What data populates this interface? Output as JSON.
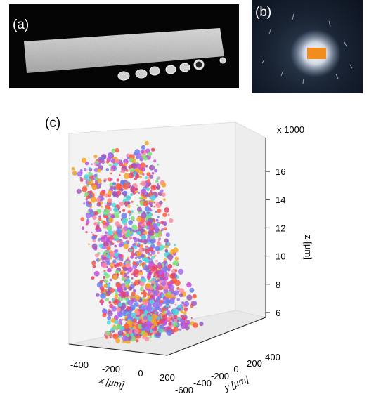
{
  "panels": {
    "a": {
      "label": "(a)"
    },
    "b": {
      "label": "(b)"
    },
    "c": {
      "label": "(c)"
    }
  },
  "chart_data": {
    "type": "scatter",
    "projection": "3d",
    "title": "",
    "xlabel": "x [µm]",
    "ylabel": "y [µm]",
    "zlabel": "z [µm]",
    "z_multiplier_label": "x 1000",
    "xlim": [
      -550,
      250
    ],
    "ylim": [
      -600,
      500
    ],
    "zlim": [
      4.2,
      17.8
    ],
    "x_ticks": [
      "-400",
      "-200",
      "0",
      "200"
    ],
    "y_ticks": [
      "-600",
      "-400",
      "-200",
      "0",
      "200",
      "400"
    ],
    "z_ticks": [
      "6",
      "8",
      "10",
      "12",
      "14",
      "16"
    ],
    "grid": false,
    "z_range_of_points": [
      4.6,
      17.0
    ],
    "x_range_of_points": [
      -500,
      200
    ],
    "y_range_of_points": [
      -500,
      400
    ],
    "point_count_estimate": 1500,
    "marker_colors": [
      "#e8436b",
      "#c74bd8",
      "#6a7ef0",
      "#4ad9e0",
      "#ff8aa0",
      "#a46cf0",
      "#f5a623",
      "#7fe07a",
      "#ff5a3c",
      "#9b59b6"
    ]
  }
}
